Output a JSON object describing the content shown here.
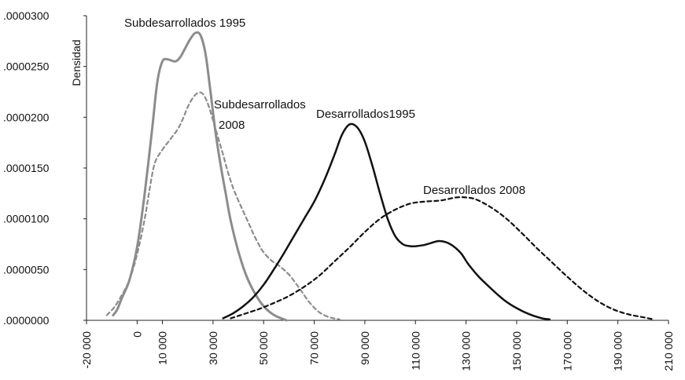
{
  "chart_data": {
    "type": "line",
    "title": "",
    "xlabel": "",
    "ylabel": "Densidad",
    "xlim": [
      -20000,
      210000
    ],
    "ylim": [
      0,
      3e-05
    ],
    "grid": false,
    "legend": "none",
    "x_ticks": [
      -20000,
      0,
      10000,
      30000,
      50000,
      70000,
      90000,
      110000,
      130000,
      150000,
      170000,
      190000,
      210000
    ],
    "x_tick_labels": [
      "-20 000",
      "0",
      "10 000",
      "30 000",
      "50 000",
      "70 000",
      "90 000",
      "110 000",
      "130 000",
      "150 000",
      "170 000",
      "190 000",
      "210 000"
    ],
    "y_ticks": [
      0,
      5e-06,
      1e-05,
      1.5e-05,
      2e-05,
      2.5e-05,
      3e-05
    ],
    "y_tick_labels": [
      ".0000000",
      ".0000050",
      ".0000100",
      ".0000150",
      ".0000200",
      ".0000250",
      ".0000300"
    ],
    "series": [
      {
        "name": "Subdesarrollados 1995",
        "label_lines": [
          "Subdesarrollados 1995"
        ],
        "color": "#8c8c8c",
        "dash": "solid",
        "x": [
          -9500,
          -8000,
          -6000,
          -3000,
          0,
          3000,
          6000,
          8000,
          10000,
          12000,
          15000,
          17000,
          19000,
          21000,
          23000,
          25000,
          27000,
          29000,
          31000,
          33000,
          35000,
          37000,
          40000,
          43000,
          46000,
          49000,
          52000,
          55000,
          58000,
          59000
        ],
        "values": [
          5e-07,
          1e-06,
          2.2e-06,
          4e-06,
          7.2e-06,
          1.25e-05,
          1.9e-05,
          2.35e-05,
          2.55e-05,
          2.57e-05,
          2.55e-05,
          2.59e-05,
          2.68e-05,
          2.77e-05,
          2.83e-05,
          2.81e-05,
          2.63e-05,
          2.25e-05,
          1.85e-05,
          1.53e-05,
          1.25e-05,
          9.8e-06,
          6.8e-06,
          4.5e-06,
          2.9e-06,
          1.7e-06,
          9e-07,
          4e-07,
          1e-07,
          0.0
        ]
      },
      {
        "name": "Subdesarrollados 2008",
        "label_lines": [
          "Subdesarrollados",
          "2008"
        ],
        "color": "#8c8c8c",
        "dash": "dashed",
        "x": [
          -12000,
          -9000,
          -6000,
          -3000,
          0,
          3000,
          5000,
          7000,
          10000,
          13000,
          16000,
          18000,
          20000,
          22000,
          24000,
          26000,
          28000,
          30000,
          32000,
          34000,
          36000,
          38000,
          40000,
          42000,
          44000,
          46000,
          48000,
          50000,
          53000,
          56000,
          60000,
          64000,
          68000,
          72000,
          76000,
          80000
        ],
        "values": [
          5e-07,
          1.3e-06,
          2.5e-06,
          4e-06,
          6.5e-06,
          1e-05,
          1.3e-05,
          1.55e-05,
          1.68e-05,
          1.78e-05,
          1.88e-05,
          1.98e-05,
          2.1e-05,
          2.19e-05,
          2.24e-05,
          2.23e-05,
          2.13e-05,
          1.97e-05,
          1.8e-05,
          1.63e-05,
          1.45e-05,
          1.3e-05,
          1.18e-05,
          1.07e-05,
          9.6e-06,
          8.5e-06,
          7.5e-06,
          6.7e-06,
          5.9e-06,
          5.4e-06,
          4.5e-06,
          3.2e-06,
          1.8e-06,
          8e-07,
          3e-07,
          1e-07
        ]
      },
      {
        "name": "Desarrollados1995",
        "label_lines": [
          "Desarrollados1995"
        ],
        "color": "#111111",
        "dash": "solid",
        "x": [
          34000,
          38000,
          42000,
          46000,
          50000,
          54000,
          58000,
          62000,
          66000,
          70000,
          74000,
          78000,
          81000,
          84000,
          87000,
          90000,
          93000,
          96000,
          99000,
          102000,
          105000,
          108000,
          110000,
          113000,
          116000,
          119000,
          122000,
          125000,
          128000,
          131000,
          135000,
          140000,
          145000,
          150000,
          155000,
          160000,
          163000
        ],
        "values": [
          2e-07,
          7e-07,
          1.4e-06,
          2.3e-06,
          3.5e-06,
          5e-06,
          6.6e-06,
          8.3e-06,
          1e-05,
          1.17e-05,
          1.38e-05,
          1.63e-05,
          1.83e-05,
          1.93e-05,
          1.9e-05,
          1.76e-05,
          1.52e-05,
          1.25e-05,
          1e-05,
          8.3e-06,
          7.5e-06,
          7.3e-06,
          7.3e-06,
          7.4e-06,
          7.6e-06,
          7.8e-06,
          7.7e-06,
          7.3e-06,
          6.6e-06,
          5.5e-06,
          4.3e-06,
          3.1e-06,
          2e-06,
          1.2e-06,
          6e-07,
          2e-07,
          1e-07
        ]
      },
      {
        "name": "Desarrollados 2008",
        "label_lines": [
          "Desarrollados 2008"
        ],
        "color": "#111111",
        "dash": "dashed",
        "x": [
          37000,
          42000,
          48000,
          54000,
          60000,
          66000,
          72000,
          78000,
          84000,
          90000,
          96000,
          102000,
          108000,
          114000,
          120000,
          126000,
          130000,
          134000,
          140000,
          146000,
          152000,
          158000,
          164000,
          170000,
          176000,
          182000,
          188000,
          194000,
          200000,
          204000
        ],
        "values": [
          2e-07,
          6e-07,
          1.1e-06,
          1.7e-06,
          2.4e-06,
          3.3e-06,
          4.4e-06,
          5.8e-06,
          7.2e-06,
          8.7e-06,
          1e-05,
          1.09e-05,
          1.15e-05,
          1.17e-05,
          1.18e-05,
          1.21e-05,
          1.21e-05,
          1.19e-05,
          1.11e-05,
          1e-05,
          8.6e-06,
          7.1e-06,
          5.7e-06,
          4.3e-06,
          3e-06,
          1.9e-06,
          1.1e-06,
          6e-07,
          3e-07,
          1e-07
        ]
      }
    ]
  }
}
